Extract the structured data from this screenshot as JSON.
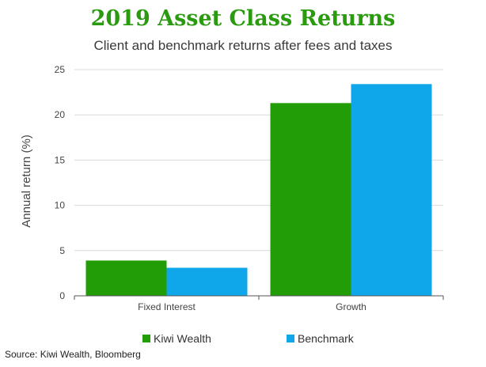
{
  "colors": {
    "title": "#2a9a0f",
    "series1": "#229c07",
    "series2": "#10a7ea",
    "grid": "#d9d9d9",
    "axis": "#555555"
  },
  "source": "Source: Kiwi Wealth, Bloomberg",
  "chart_data": {
    "type": "bar",
    "title": "2019 Asset Class Returns",
    "subtitle": "Client and benchmark returns after fees and taxes",
    "xlabel": "",
    "ylabel": "Annual return (%)",
    "categories": [
      "Fixed Interest",
      "Growth"
    ],
    "series": [
      {
        "name": "Kiwi Wealth",
        "values": [
          3.9,
          21.3
        ]
      },
      {
        "name": "Benchmark",
        "values": [
          3.1,
          23.4
        ]
      }
    ],
    "ylim": [
      0,
      25
    ],
    "yticks": [
      0,
      5,
      10,
      15,
      20,
      25
    ],
    "grid": true,
    "legend": "bottom"
  }
}
